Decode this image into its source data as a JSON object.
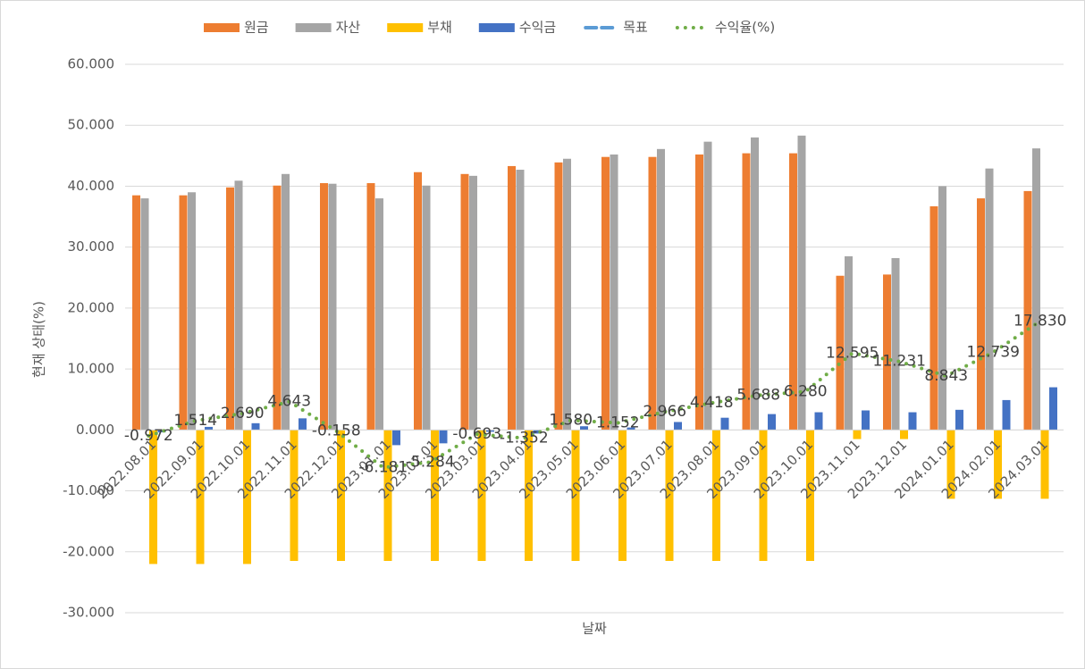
{
  "chart_data": {
    "type": "bar",
    "x_label": "날짜",
    "y_label": "현재 상태(%)",
    "categories": [
      "2022.08.01",
      "2022.09.01",
      "2022.10.01",
      "2022.11.01",
      "2022.12.01",
      "2023.01.01",
      "2023.02.01",
      "2023.03.01",
      "2023.04.01",
      "2023.05.01",
      "2023.06.01",
      "2023.07.01",
      "2023.08.01",
      "2023.09.01",
      "2023.10.01",
      "2023.11.01",
      "2023.12.01",
      "2024.01.01",
      "2024.02.01",
      "2024.03.01"
    ],
    "series": [
      {
        "name": "원금",
        "type": "bar",
        "color": "#ed7d31",
        "values": [
          38.5,
          38.5,
          39.8,
          40.1,
          40.5,
          40.5,
          42.3,
          42.0,
          43.3,
          43.9,
          44.8,
          44.8,
          45.2,
          45.4,
          45.4,
          25.3,
          25.5,
          36.7,
          38.0,
          39.2
        ]
      },
      {
        "name": "자산",
        "type": "bar",
        "color": "#a5a5a5",
        "values": [
          38.0,
          39.0,
          40.9,
          42.0,
          40.4,
          38.0,
          40.1,
          41.7,
          42.7,
          44.5,
          45.2,
          46.1,
          47.3,
          48.0,
          48.3,
          28.5,
          28.2,
          40.0,
          42.9,
          46.2
        ]
      },
      {
        "name": "부채",
        "type": "bar",
        "color": "#ffc000",
        "values": [
          -22,
          -22,
          -22,
          -21.5,
          -21.5,
          -21.5,
          -21.5,
          -21.5,
          -21.5,
          -21.5,
          -21.5,
          -21.5,
          -21.5,
          -21.5,
          -21.5,
          -1.5,
          -1.5,
          -11.3,
          -11.3,
          -11.3
        ]
      },
      {
        "name": "수익금",
        "type": "bar",
        "color": "#4472c4",
        "values": [
          -0.4,
          0.5,
          1.1,
          1.9,
          -0.1,
          -2.5,
          -2.2,
          -0.3,
          -0.6,
          0.6,
          0.4,
          1.3,
          2.0,
          2.6,
          2.9,
          3.2,
          2.9,
          3.3,
          4.9,
          7.0
        ]
      },
      {
        "name": "목표",
        "type": "dashed-line",
        "color": "#5b9bd5",
        "values": [
          null,
          null,
          null,
          null,
          null,
          null,
          null,
          null,
          null,
          null,
          null,
          null,
          null,
          null,
          null,
          null,
          null,
          null,
          null,
          null
        ]
      },
      {
        "name": "수익율(%)",
        "type": "dotted-line",
        "color": "#70ad47",
        "values": [
          -0.972,
          1.514,
          2.69,
          4.643,
          -0.158,
          -6.181,
          -5.284,
          -0.693,
          -1.352,
          1.58,
          1.152,
          2.966,
          4.418,
          5.688,
          6.28,
          12.595,
          11.231,
          8.843,
          12.739,
          17.83
        ],
        "value_labels": [
          "-0.972",
          "1.514",
          "2.690",
          "4.643",
          "-0.158",
          "-6.181",
          "-5.284",
          "-0.693",
          "-1.352",
          "1.580",
          "1.152",
          "2.966",
          "4.418",
          "5.688",
          "6.280",
          "12.595",
          "11.231",
          "8.843",
          "12.739",
          "17.830"
        ]
      }
    ],
    "ylim": [
      -30,
      60
    ],
    "yticks": [
      {
        "value": -30,
        "label": "-30.000"
      },
      {
        "value": -20,
        "label": "-20.000"
      },
      {
        "value": -10,
        "label": "-10.000"
      },
      {
        "value": 0,
        "label": "0.000"
      },
      {
        "value": 10,
        "label": "10.000"
      },
      {
        "value": 20,
        "label": "20.000"
      },
      {
        "value": 30,
        "label": "30.000"
      },
      {
        "value": 40,
        "label": "40.000"
      },
      {
        "value": 50,
        "label": "50.000"
      },
      {
        "value": 60,
        "label": "60.000"
      }
    ],
    "grid": true,
    "legend": "top"
  }
}
